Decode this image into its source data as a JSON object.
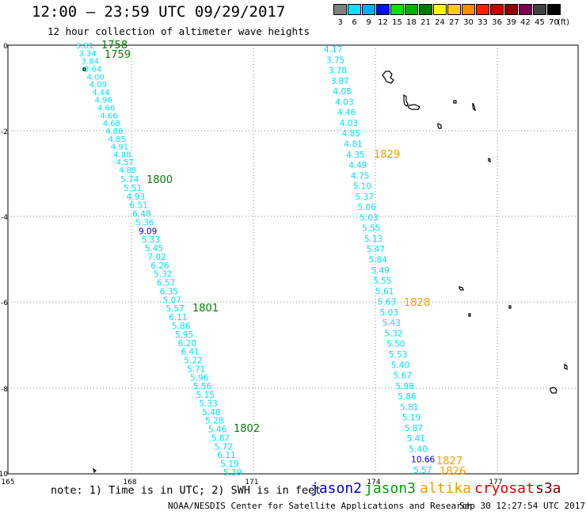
{
  "header": {
    "title": "12:00 — 23:59 UTC 09/29/2017",
    "subtitle": "12 hour collection of altimeter wave heights"
  },
  "scale": {
    "unit_label": "(ft)",
    "bins": [
      {
        "label": "3",
        "color": "#808080"
      },
      {
        "label": "6",
        "color": "#00e5ff"
      },
      {
        "label": "9",
        "color": "#00b0ff"
      },
      {
        "label": "12",
        "color": "#0010ff"
      },
      {
        "label": "15",
        "color": "#10e010"
      },
      {
        "label": "18",
        "color": "#00b000"
      },
      {
        "label": "21",
        "color": "#007a00"
      },
      {
        "label": "24",
        "color": "#ffff00"
      },
      {
        "label": "27",
        "color": "#ffcc00"
      },
      {
        "label": "30",
        "color": "#ff8c00"
      },
      {
        "label": "33",
        "color": "#ff2000"
      },
      {
        "label": "36",
        "color": "#c80000"
      },
      {
        "label": "39",
        "color": "#8b0000"
      },
      {
        "label": "42",
        "color": "#7a0050"
      },
      {
        "label": "45",
        "color": "#404040"
      },
      {
        "label": "70",
        "color": "#000000"
      }
    ]
  },
  "map": {
    "lon_labels": [
      "165",
      "168",
      "171",
      "174",
      "177"
    ],
    "lat_labels": [
      "0",
      "-2",
      "-4",
      "-6",
      "-8",
      "-10"
    ],
    "colors": {
      "cyan": "#00e0ff",
      "navy": "#0000c0",
      "green": "#008000",
      "orange": "#ff9900"
    }
  },
  "tracks": {
    "west_crowded": [
      "3.81",
      "3.34",
      "3.84",
      "3.64",
      "4.00",
      "4.09",
      "4.44",
      "4.96",
      "4.66",
      "4.66",
      "4.68",
      "4.88",
      "4.85",
      "4.91",
      "4.88",
      "4.57",
      "4.88"
    ],
    "west": [
      "5.74",
      "5.51",
      "4.93",
      "6.51",
      "6.48",
      "5.36",
      "9.09",
      "5.33",
      "5.45",
      "7.02",
      "6.26",
      "5.32",
      "6.57",
      "6.35",
      "5.07",
      "5.57",
      "6.11",
      "5.86",
      "5.95",
      "6.20",
      "6.41",
      "5.22",
      "5.71",
      "5.96",
      "5.56",
      "5.15",
      "5.33",
      "5.48",
      "5.28",
      "5.46",
      "5.87",
      "5.72",
      "6.11",
      "5.19",
      "5.39"
    ],
    "west_highlight": "9.09",
    "east": [
      "4.17",
      "3.75",
      "3.78",
      "3.87",
      "4.08",
      "4.03",
      "4.46",
      "4.03",
      "4.85",
      "4.81",
      "4.35",
      "4.49",
      "4.75",
      "5.10",
      "5.37",
      "5.06",
      "5.03",
      "5.55",
      "5.13",
      "5.47",
      "5.84",
      "5.49",
      "5.55",
      "5.61",
      "5.63",
      "5.03",
      "5.43",
      "5.32",
      "5.50",
      "5.53",
      "5.40",
      "5.67",
      "5.98",
      "5.86",
      "5.81",
      "5.19",
      "5.87",
      "5.41",
      "5.40",
      "10.66",
      "5.57"
    ],
    "east_highlight": "10.66",
    "west_times": [
      "1758",
      "1759",
      "1800",
      "1801",
      "1802"
    ],
    "east_times": [
      "1829",
      "1828",
      "1827",
      "1826"
    ]
  },
  "footer": {
    "note": "note: 1) Time is in UTC; 2) SWH is in feet",
    "legend": [
      {
        "label": "jason2",
        "color": "#0000d0"
      },
      {
        "label": "jason3",
        "color": "#00a000"
      },
      {
        "label": "altika",
        "color": "#ff9900"
      },
      {
        "label": "cryosat",
        "color": "#e00000"
      },
      {
        "label": "s3a",
        "color": "#800000"
      }
    ],
    "credit": "NOAA/NESDIS Center for Satellite Applications and Research",
    "timestamp": "Sep 30 12:27:54 UTC 2017"
  }
}
